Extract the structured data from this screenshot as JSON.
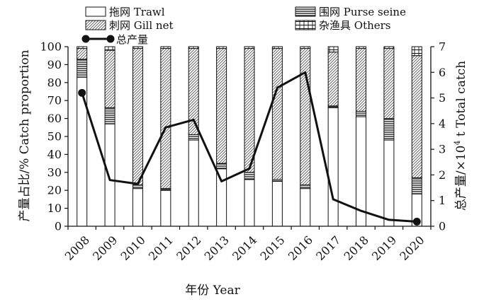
{
  "chart_data": {
    "type": "bar",
    "subtype": "stacked-percent-bar-with-line",
    "xlabel": "年份 Year",
    "ylabel_left": "产量占比/% Catch proportion",
    "ylabel_right": "总产量/×10⁴ t Total catch",
    "ylim_left": [
      0,
      100
    ],
    "ylim_right": [
      0,
      7
    ],
    "yticks_left": [
      0,
      10,
      20,
      30,
      40,
      50,
      60,
      70,
      80,
      90,
      100
    ],
    "yticks_right": [
      0,
      1,
      2,
      3,
      4,
      5,
      6,
      7
    ],
    "categories": [
      "2008",
      "2009",
      "2010",
      "2011",
      "2012",
      "2013",
      "2014",
      "2015",
      "2016",
      "2017",
      "2018",
      "2019",
      "2020"
    ],
    "legend": [
      {
        "key": "trawl",
        "label": "拖网 Trawl"
      },
      {
        "key": "purse",
        "label": "围网 Purse seine"
      },
      {
        "key": "gill",
        "label": "刺网 Gill net"
      },
      {
        "key": "others",
        "label": "杂渔具 Others"
      },
      {
        "key": "total",
        "label": "总产量"
      }
    ],
    "series": [
      {
        "key": "trawl",
        "name": "拖网 Trawl",
        "values": [
          83,
          57,
          21,
          20,
          48,
          32,
          26,
          25,
          21,
          66,
          61,
          48,
          18
        ]
      },
      {
        "key": "purse",
        "name": "围网 Purse seine",
        "values": [
          10,
          9,
          2,
          1,
          3,
          3,
          4,
          1,
          2,
          1,
          3,
          12,
          9
        ]
      },
      {
        "key": "gill",
        "name": "刺网 Gill net",
        "values": [
          6,
          32,
          76,
          78,
          48,
          64,
          69,
          73,
          76,
          30,
          35,
          39,
          68
        ]
      },
      {
        "key": "others",
        "name": "杂渔具 Others",
        "values": [
          1,
          2,
          1,
          1,
          1,
          1,
          1,
          1,
          1,
          3,
          1,
          1,
          5
        ]
      }
    ],
    "line": {
      "key": "total",
      "name": "总产量",
      "axis": "right",
      "values": [
        5.2,
        1.8,
        1.65,
        3.85,
        4.15,
        1.75,
        2.25,
        5.4,
        6.0,
        1.05,
        0.6,
        0.25,
        0.18
      ],
      "marker_indices": [
        0,
        12
      ]
    },
    "grid": false
  }
}
